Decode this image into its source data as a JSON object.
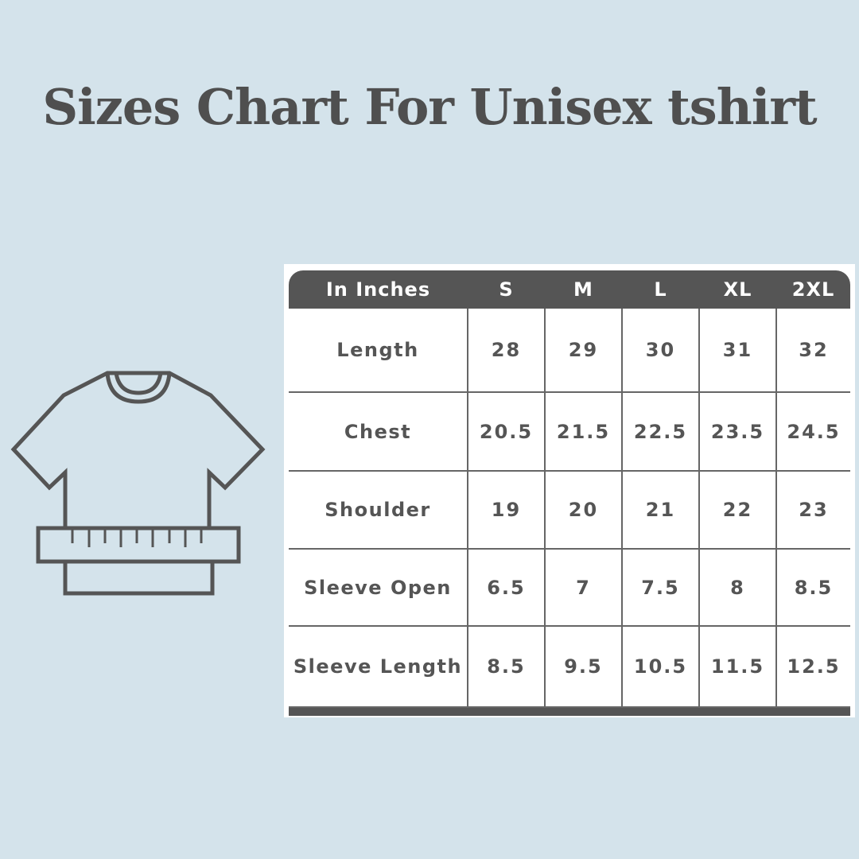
{
  "title": "Sizes Chart For Unisex tshirt",
  "icon": "tshirt-measure-icon",
  "colors": {
    "background": "#d4e3eb",
    "header": "#555555",
    "text": "#4f4f4f"
  },
  "table": {
    "header": [
      "In Inches",
      "S",
      "M",
      "L",
      "XL",
      "2XL"
    ],
    "rows": [
      {
        "label": "Length",
        "values": [
          "28",
          "29",
          "30",
          "31",
          "32"
        ]
      },
      {
        "label": "Chest",
        "values": [
          "20.5",
          "21.5",
          "22.5",
          "23.5",
          "24.5"
        ]
      },
      {
        "label": "Shoulder",
        "values": [
          "19",
          "20",
          "21",
          "22",
          "23"
        ]
      },
      {
        "label": "Sleeve Open",
        "values": [
          "6.5",
          "7",
          "7.5",
          "8",
          "8.5"
        ]
      },
      {
        "label": "Sleeve Length",
        "values": [
          "8.5",
          "9.5",
          "10.5",
          "11.5",
          "12.5"
        ]
      }
    ]
  }
}
